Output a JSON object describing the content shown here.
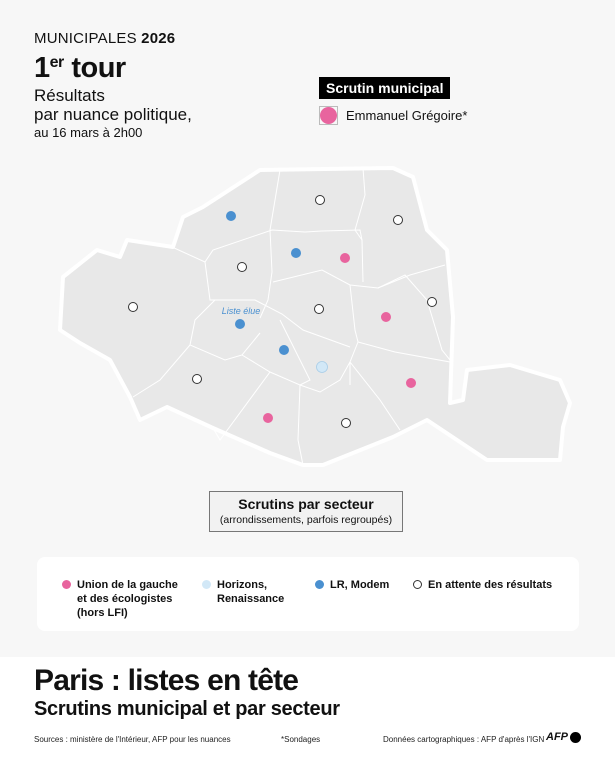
{
  "header": {
    "kicker_prefix": "MUNICIPALES",
    "kicker_year": "2026",
    "tour_number": "1",
    "tour_sup": "er",
    "tour_word": "tour",
    "subtitle_line1": "Résultats",
    "subtitle_line2": "par nuance politique,",
    "date": "au 16 mars à 2h00"
  },
  "municipal": {
    "label": "Scrutin municipal",
    "leader": "Emmanuel Grégoire*",
    "leader_color": "#e8649e"
  },
  "colors": {
    "union_gauche": "#e8649e",
    "horizons": "#d2e8f7",
    "lr_modem": "#4a90d0",
    "en_attente": "#ffffff",
    "map_fill": "#e8e8e8"
  },
  "map": {
    "elected_annotation": "Liste élue",
    "sectors": [
      {
        "result": "lr_modem"
      },
      {
        "result": "en_attente"
      },
      {
        "result": "en_attente"
      },
      {
        "result": "lr_modem"
      },
      {
        "result": "union_gauche"
      },
      {
        "result": "en_attente"
      },
      {
        "result": "en_attente"
      },
      {
        "result": "en_attente"
      },
      {
        "result": "en_attente"
      },
      {
        "result": "union_gauche"
      },
      {
        "result": "lr_modem",
        "elected": true
      },
      {
        "result": "lr_modem"
      },
      {
        "result": "horizons"
      },
      {
        "result": "en_attente"
      },
      {
        "result": "union_gauche"
      },
      {
        "result": "union_gauche"
      },
      {
        "result": "en_attente"
      }
    ]
  },
  "sector_box": {
    "title": "Scrutins par secteur",
    "subtitle": "(arrondissements, parfois regroupés)"
  },
  "legend": [
    {
      "key": "union_gauche",
      "label": "Union de la gauche\net des écologistes\n(hors LFI)"
    },
    {
      "key": "horizons",
      "label": "Horizons,\nRenaissance"
    },
    {
      "key": "lr_modem",
      "label": "LR, Modem"
    },
    {
      "key": "en_attente",
      "label": "En attente des résultats"
    }
  ],
  "footer": {
    "title": "Paris : listes en tête",
    "subtitle": "Scrutins municipal et par secteur",
    "sources": "Sources : ministère de l'Intérieur, AFP pour les nuances",
    "note": "*Sondages",
    "carto": "Données cartographiques : AFP d'après l'IGN",
    "logo": "AFP"
  }
}
